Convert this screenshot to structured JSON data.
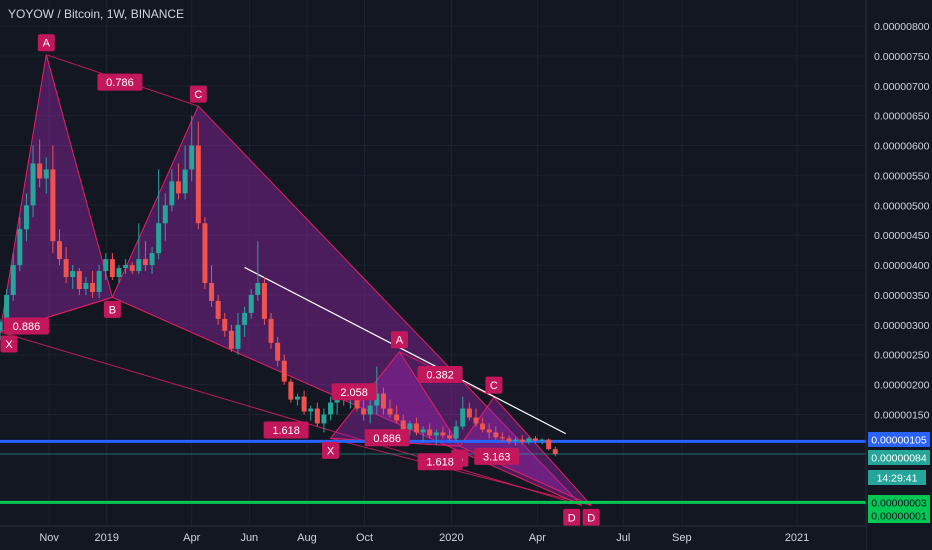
{
  "header": {
    "title": "YOYOW / Bitcoin, 1W, BINANCE"
  },
  "colors": {
    "background": "#131722",
    "up": "#26a69a",
    "down": "#ef5350",
    "pattern_fill": "#9c27b0",
    "pattern_stroke": "#e91e63",
    "label_bg": "#c2185b",
    "label_text": "#ffffff",
    "trendline": "#ffffff",
    "support_line": "#2962ff",
    "green_line": "#00c853",
    "axis_text": "#d1d4dc"
  },
  "price_tags": [
    {
      "label": "0.00000105",
      "color": "#2962ff",
      "price": 105
    },
    {
      "label": "0.00000084",
      "color": "#26a69a",
      "price": 84
    },
    {
      "label": "14:29:41",
      "color": "#26a69a",
      "price": 70
    },
    {
      "label": "0.00000003",
      "color": "#00c853",
      "price": 3
    },
    {
      "label": "0.00000001",
      "color": "#00c853",
      "price": -7
    }
  ],
  "chart_data": {
    "type": "candlestick",
    "symbol": "YOYOW / Bitcoin",
    "interval": "1W",
    "exchange": "BINANCE",
    "price_unit_note": "",
    "y_ticks": [
      {
        "label": "0.00000800",
        "value": 800
      },
      {
        "label": "0.00000750",
        "value": 750
      },
      {
        "label": "0.00000700",
        "value": 700
      },
      {
        "label": "0.00000650",
        "value": 650
      },
      {
        "label": "0.00000600",
        "value": 600
      },
      {
        "label": "0.00000550",
        "value": 550
      },
      {
        "label": "0.00000500",
        "value": 500
      },
      {
        "label": "0.00000450",
        "value": 450
      },
      {
        "label": "0.00000400",
        "value": 400
      },
      {
        "label": "0.00000350",
        "value": 350
      },
      {
        "label": "0.00000300",
        "value": 300
      },
      {
        "label": "0.00000250",
        "value": 250
      },
      {
        "label": "0.00000200",
        "value": 200
      },
      {
        "label": "0.00000150",
        "value": 150
      }
    ],
    "partial_tick": {
      "label": "0.",
      "value": 85
    },
    "x_ticks": [
      {
        "label": "Nov",
        "date": "2018-11-01"
      },
      {
        "label": "2019",
        "date": "2019-01-01"
      },
      {
        "label": "Apr",
        "date": "2019-04-01"
      },
      {
        "label": "Jun",
        "date": "2019-06-01"
      },
      {
        "label": "Aug",
        "date": "2019-08-01"
      },
      {
        "label": "Oct",
        "date": "2019-10-01"
      },
      {
        "label": "2020",
        "date": "2020-01-01"
      },
      {
        "label": "Apr",
        "date": "2020-04-01"
      },
      {
        "label": "Jul",
        "date": "2020-07-01"
      },
      {
        "label": "Sep",
        "date": "2020-09-01"
      },
      {
        "label": "2021",
        "date": "2021-01-01"
      }
    ],
    "x_range": [
      "2018-09-10",
      "2021-03-15"
    ],
    "y_range": [
      -20,
      825
    ],
    "candles": [
      [
        "2018-09-10",
        290,
        310,
        275,
        305
      ],
      [
        "2018-09-17",
        305,
        360,
        295,
        350
      ],
      [
        "2018-09-24",
        350,
        420,
        340,
        400
      ],
      [
        "2018-10-01",
        400,
        480,
        390,
        460
      ],
      [
        "2018-10-08",
        460,
        520,
        440,
        500
      ],
      [
        "2018-10-15",
        500,
        600,
        480,
        570
      ],
      [
        "2018-10-22",
        570,
        610,
        530,
        545
      ],
      [
        "2018-10-29",
        545,
        580,
        520,
        560
      ],
      [
        "2018-11-05",
        560,
        600,
        420,
        440
      ],
      [
        "2018-11-12",
        440,
        460,
        400,
        410
      ],
      [
        "2018-11-19",
        410,
        430,
        370,
        380
      ],
      [
        "2018-11-26",
        380,
        400,
        360,
        390
      ],
      [
        "2018-12-03",
        390,
        395,
        350,
        360
      ],
      [
        "2018-12-10",
        360,
        380,
        350,
        370
      ],
      [
        "2018-12-17",
        370,
        390,
        345,
        355
      ],
      [
        "2018-12-24",
        355,
        400,
        345,
        390
      ],
      [
        "2018-12-31",
        390,
        420,
        375,
        410
      ],
      [
        "2019-01-07",
        410,
        420,
        375,
        380
      ],
      [
        "2019-01-14",
        380,
        400,
        370,
        395
      ],
      [
        "2019-01-21",
        395,
        410,
        385,
        400
      ],
      [
        "2019-01-28",
        400,
        405,
        385,
        390
      ],
      [
        "2019-02-04",
        390,
        470,
        385,
        410
      ],
      [
        "2019-02-11",
        410,
        440,
        390,
        400
      ],
      [
        "2019-02-18",
        400,
        430,
        385,
        420
      ],
      [
        "2019-02-25",
        420,
        560,
        410,
        470
      ],
      [
        "2019-03-04",
        470,
        520,
        440,
        500
      ],
      [
        "2019-03-11",
        500,
        560,
        490,
        540
      ],
      [
        "2019-03-18",
        540,
        570,
        510,
        520
      ],
      [
        "2019-03-25",
        520,
        600,
        510,
        560
      ],
      [
        "2019-04-01",
        560,
        650,
        540,
        600
      ],
      [
        "2019-04-08",
        600,
        640,
        460,
        470
      ],
      [
        "2019-04-15",
        470,
        480,
        360,
        370
      ],
      [
        "2019-04-22",
        370,
        400,
        330,
        340
      ],
      [
        "2019-04-29",
        340,
        350,
        300,
        310
      ],
      [
        "2019-05-06",
        310,
        320,
        280,
        290
      ],
      [
        "2019-05-13",
        290,
        300,
        255,
        260
      ],
      [
        "2019-05-20",
        260,
        320,
        250,
        300
      ],
      [
        "2019-05-27",
        300,
        330,
        280,
        320
      ],
      [
        "2019-06-03",
        320,
        360,
        310,
        350
      ],
      [
        "2019-06-10",
        350,
        440,
        340,
        370
      ],
      [
        "2019-06-17",
        370,
        380,
        300,
        310
      ],
      [
        "2019-06-24",
        310,
        320,
        260,
        270
      ],
      [
        "2019-07-01",
        270,
        280,
        230,
        240
      ],
      [
        "2019-07-08",
        240,
        250,
        200,
        205
      ],
      [
        "2019-07-15",
        205,
        210,
        170,
        175
      ],
      [
        "2019-07-22",
        175,
        185,
        165,
        180
      ],
      [
        "2019-07-29",
        180,
        190,
        150,
        155
      ],
      [
        "2019-08-05",
        155,
        165,
        140,
        160
      ],
      [
        "2019-08-12",
        160,
        170,
        130,
        135
      ],
      [
        "2019-08-19",
        135,
        160,
        120,
        150
      ],
      [
        "2019-08-26",
        150,
        180,
        140,
        170
      ],
      [
        "2019-09-02",
        170,
        195,
        150,
        185
      ],
      [
        "2019-09-09",
        185,
        200,
        165,
        175
      ],
      [
        "2019-09-16",
        175,
        195,
        160,
        190
      ],
      [
        "2019-09-23",
        190,
        200,
        155,
        160
      ],
      [
        "2019-09-30",
        160,
        180,
        140,
        150
      ],
      [
        "2019-10-07",
        150,
        175,
        135,
        165
      ],
      [
        "2019-10-14",
        165,
        230,
        150,
        185
      ],
      [
        "2019-10-21",
        185,
        195,
        150,
        160
      ],
      [
        "2019-10-28",
        160,
        175,
        145,
        150
      ],
      [
        "2019-11-04",
        150,
        165,
        135,
        140
      ],
      [
        "2019-11-11",
        140,
        150,
        120,
        125
      ],
      [
        "2019-11-18",
        125,
        140,
        115,
        135
      ],
      [
        "2019-11-25",
        135,
        145,
        115,
        120
      ],
      [
        "2019-12-02",
        120,
        130,
        105,
        125
      ],
      [
        "2019-12-09",
        125,
        135,
        110,
        115
      ],
      [
        "2019-12-16",
        115,
        125,
        100,
        120
      ],
      [
        "2019-12-23",
        120,
        130,
        110,
        115
      ],
      [
        "2019-12-30",
        115,
        125,
        105,
        110
      ],
      [
        "2020-01-06",
        110,
        140,
        105,
        130
      ],
      [
        "2020-01-13",
        130,
        180,
        125,
        160
      ],
      [
        "2020-01-20",
        160,
        170,
        140,
        145
      ],
      [
        "2020-01-27",
        145,
        160,
        130,
        135
      ],
      [
        "2020-02-03",
        135,
        145,
        120,
        125
      ],
      [
        "2020-02-10",
        125,
        135,
        110,
        120
      ],
      [
        "2020-02-17",
        120,
        130,
        108,
        112
      ],
      [
        "2020-02-24",
        112,
        120,
        105,
        110
      ],
      [
        "2020-03-02",
        110,
        115,
        100,
        105
      ],
      [
        "2020-03-09",
        105,
        112,
        98,
        108
      ],
      [
        "2020-03-16",
        108,
        115,
        100,
        104
      ],
      [
        "2020-03-23",
        104,
        112,
        100,
        110
      ],
      [
        "2020-03-30",
        110,
        114,
        102,
        106
      ],
      [
        "2020-04-06",
        106,
        110,
        100,
        108
      ],
      [
        "2020-04-13",
        108,
        110,
        90,
        92
      ],
      [
        "2020-04-20",
        92,
        96,
        80,
        84
      ]
    ],
    "harmonic_patterns": [
      {
        "points": [
          {
            "label": "X",
            "date": "2018-09-10",
            "price": 288
          },
          {
            "label": "A",
            "date": "2018-10-29",
            "price": 752
          },
          {
            "label": "B",
            "date": "2019-01-07",
            "price": 346
          },
          {
            "label": "C",
            "date": "2019-04-08",
            "price": 666
          },
          {
            "label": "D",
            "date": "2020-05-18",
            "price": -2
          }
        ],
        "ratios": [
          {
            "value": "0.786",
            "date": "2019-01-15",
            "price": 706
          },
          {
            "value": "0.886",
            "date": "2018-10-08",
            "price": 298
          },
          {
            "value": "1.618",
            "date": "2019-07-10",
            "price": 124
          }
        ]
      },
      {
        "points": [
          {
            "label": "X",
            "date": "2019-08-26",
            "price": 110
          },
          {
            "label": "A",
            "date": "2019-11-07",
            "price": 255
          },
          {
            "label": "B",
            "date": "2020-01-10",
            "price": 97
          },
          {
            "label": "C",
            "date": "2020-02-15",
            "price": 179
          },
          {
            "label": "D",
            "date": "2020-05-28",
            "price": -2
          }
        ],
        "ratios": [
          {
            "value": "0.382",
            "date": "2019-12-20",
            "price": 217
          },
          {
            "value": "2.058",
            "date": "2019-09-20",
            "price": 188
          },
          {
            "value": "0.886",
            "date": "2019-10-25",
            "price": 111
          },
          {
            "value": "1.618",
            "date": "2019-12-20",
            "price": 71
          },
          {
            "value": "3.163",
            "date": "2020-02-18",
            "price": 80
          }
        ]
      }
    ],
    "trendline": {
      "from": {
        "date": "2019-05-27",
        "price": 396
      },
      "to": {
        "date": "2020-05-01",
        "price": 118
      }
    },
    "support_line": {
      "price": 105
    },
    "current_price_line": {
      "price": 84
    },
    "green_line": {
      "price": 3
    }
  }
}
